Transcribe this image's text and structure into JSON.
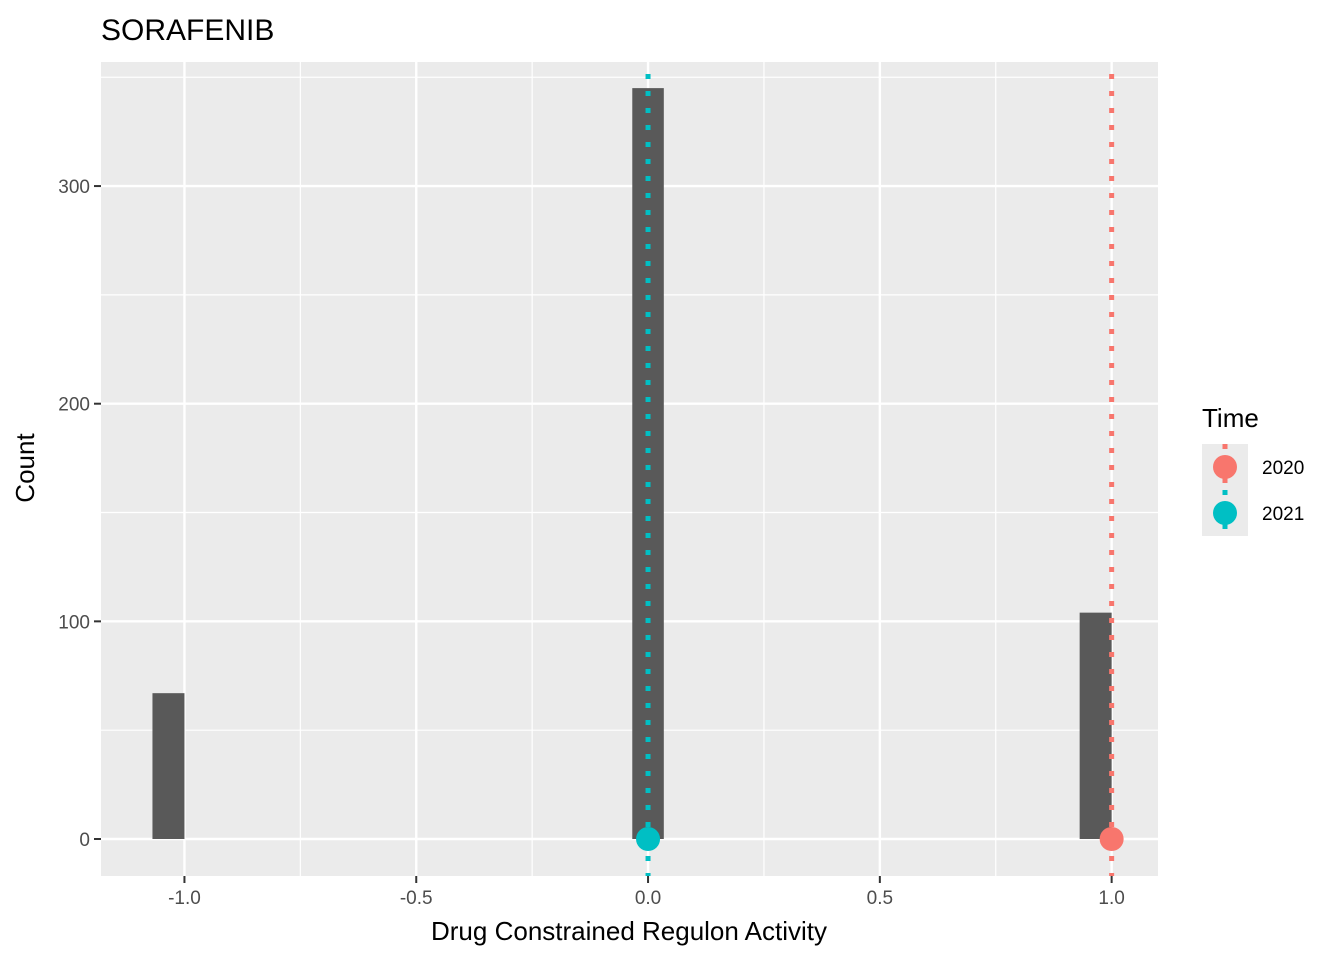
{
  "chart_data": {
    "type": "bar",
    "title": "SORAFENIB",
    "xlabel": "Drug Constrained Regulon Activity",
    "ylabel": "Count",
    "xlim": [
      -1.18,
      1.1
    ],
    "ylim": [
      -17,
      357
    ],
    "x_ticks": [
      {
        "value": -1.0,
        "label": "-1.0"
      },
      {
        "value": -0.5,
        "label": "-0.5"
      },
      {
        "value": 0.0,
        "label": "0.0"
      },
      {
        "value": 0.5,
        "label": "0.5"
      },
      {
        "value": 1.0,
        "label": "1.0"
      }
    ],
    "y_ticks": [
      {
        "value": 0,
        "label": "0"
      },
      {
        "value": 100,
        "label": "100"
      },
      {
        "value": 200,
        "label": "200"
      },
      {
        "value": 300,
        "label": "300"
      }
    ],
    "bars": [
      {
        "x_min": -1.069,
        "x_max": -1.0,
        "count": 67
      },
      {
        "x_min": -0.034,
        "x_max": 0.034,
        "count": 345
      },
      {
        "x_min": 0.931,
        "x_max": 1.0,
        "count": 104
      }
    ],
    "series": [
      {
        "name": "2020",
        "value": 1.0,
        "color": "#F8766D"
      },
      {
        "name": "2021",
        "value": 0.0,
        "color": "#00BFC4"
      }
    ],
    "legend": {
      "title": "Time",
      "position": "right"
    },
    "grid": true,
    "colors": {
      "panel": "#EBEBEB",
      "grid": "#FFFFFF",
      "bar": "#595959"
    }
  }
}
